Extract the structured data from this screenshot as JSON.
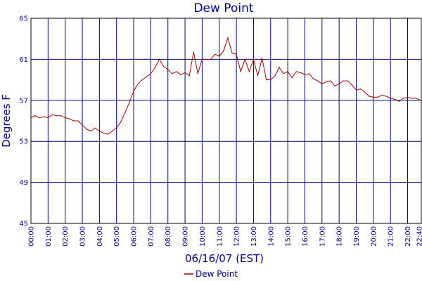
{
  "chart_data": {
    "type": "line",
    "title": "Dew Point",
    "xlabel": "06/16/07 (EST)",
    "ylabel": "Degrees F",
    "ylim": [
      45,
      65
    ],
    "xlim": [
      0,
      22.8
    ],
    "yticks": [
      "45",
      "49",
      "53",
      "57",
      "61",
      "65"
    ],
    "xticks": [
      "00:00",
      "01:00",
      "02:00",
      "03:00",
      "04:00",
      "05:00",
      "06:00",
      "07:00",
      "08:00",
      "09:00",
      "10:00",
      "11:00",
      "12:00",
      "13:00",
      "14:00",
      "15:00",
      "16:00",
      "17:00",
      "18:00",
      "19:00",
      "20:00",
      "21:00",
      "22:00",
      "22:40"
    ],
    "grid": true,
    "legend_position": "bottom",
    "colors": {
      "series": "#990000",
      "grid": "#000080",
      "axis": "#000000",
      "text": "#000080"
    },
    "series": [
      {
        "name": "Dew Point",
        "x": [
          0,
          0.25,
          0.5,
          0.75,
          1,
          1.25,
          1.5,
          1.75,
          2,
          2.25,
          2.5,
          2.75,
          3,
          3.25,
          3.5,
          3.75,
          4,
          4.25,
          4.5,
          4.75,
          5,
          5.25,
          5.5,
          5.75,
          6,
          6.25,
          6.5,
          6.75,
          7,
          7.25,
          7.5,
          7.75,
          8,
          8.25,
          8.5,
          8.75,
          9,
          9.25,
          9.5,
          9.75,
          10,
          10.25,
          10.5,
          10.75,
          11,
          11.25,
          11.5,
          11.75,
          12,
          12.25,
          12.5,
          12.75,
          13,
          13.25,
          13.5,
          13.75,
          14,
          14.25,
          14.5,
          14.75,
          15,
          15.25,
          15.5,
          15.75,
          16,
          16.25,
          16.5,
          16.75,
          17,
          17.25,
          17.5,
          17.75,
          18,
          18.25,
          18.5,
          18.75,
          19,
          19.25,
          19.5,
          19.75,
          20,
          20.25,
          20.5,
          20.75,
          21,
          21.25,
          21.5,
          21.75,
          22,
          22.25,
          22.5,
          22.75
        ],
        "values": [
          55.3,
          55.5,
          55.3,
          55.4,
          55.3,
          55.6,
          55.5,
          55.5,
          55.3,
          55.2,
          55.0,
          55.0,
          54.6,
          54.2,
          54.0,
          54.3,
          54.0,
          53.8,
          53.7,
          54.0,
          54.3,
          54.9,
          55.8,
          56.8,
          57.9,
          58.6,
          59.0,
          59.3,
          59.6,
          60.2,
          61.0,
          60.3,
          60.0,
          59.6,
          59.8,
          59.5,
          59.7,
          59.4,
          61.7,
          59.6,
          61.0,
          61.0,
          61.0,
          61.5,
          61.3,
          61.8,
          63.1,
          61.6,
          61.5,
          59.8,
          61.0,
          59.8,
          61.0,
          59.4,
          61.1,
          59.0,
          59.0,
          59.4,
          60.2,
          59.6,
          59.8,
          59.2,
          59.8,
          59.7,
          59.5,
          59.6,
          59.1,
          58.9,
          58.6,
          58.8,
          58.9,
          58.4,
          58.6,
          58.9,
          58.9,
          58.5,
          58.0,
          58.1,
          57.8,
          57.4,
          57.3,
          57.3,
          57.5,
          57.4,
          57.2,
          57.1,
          56.9,
          57.2,
          57.3,
          57.2,
          57.2,
          57.0
        ]
      }
    ]
  }
}
